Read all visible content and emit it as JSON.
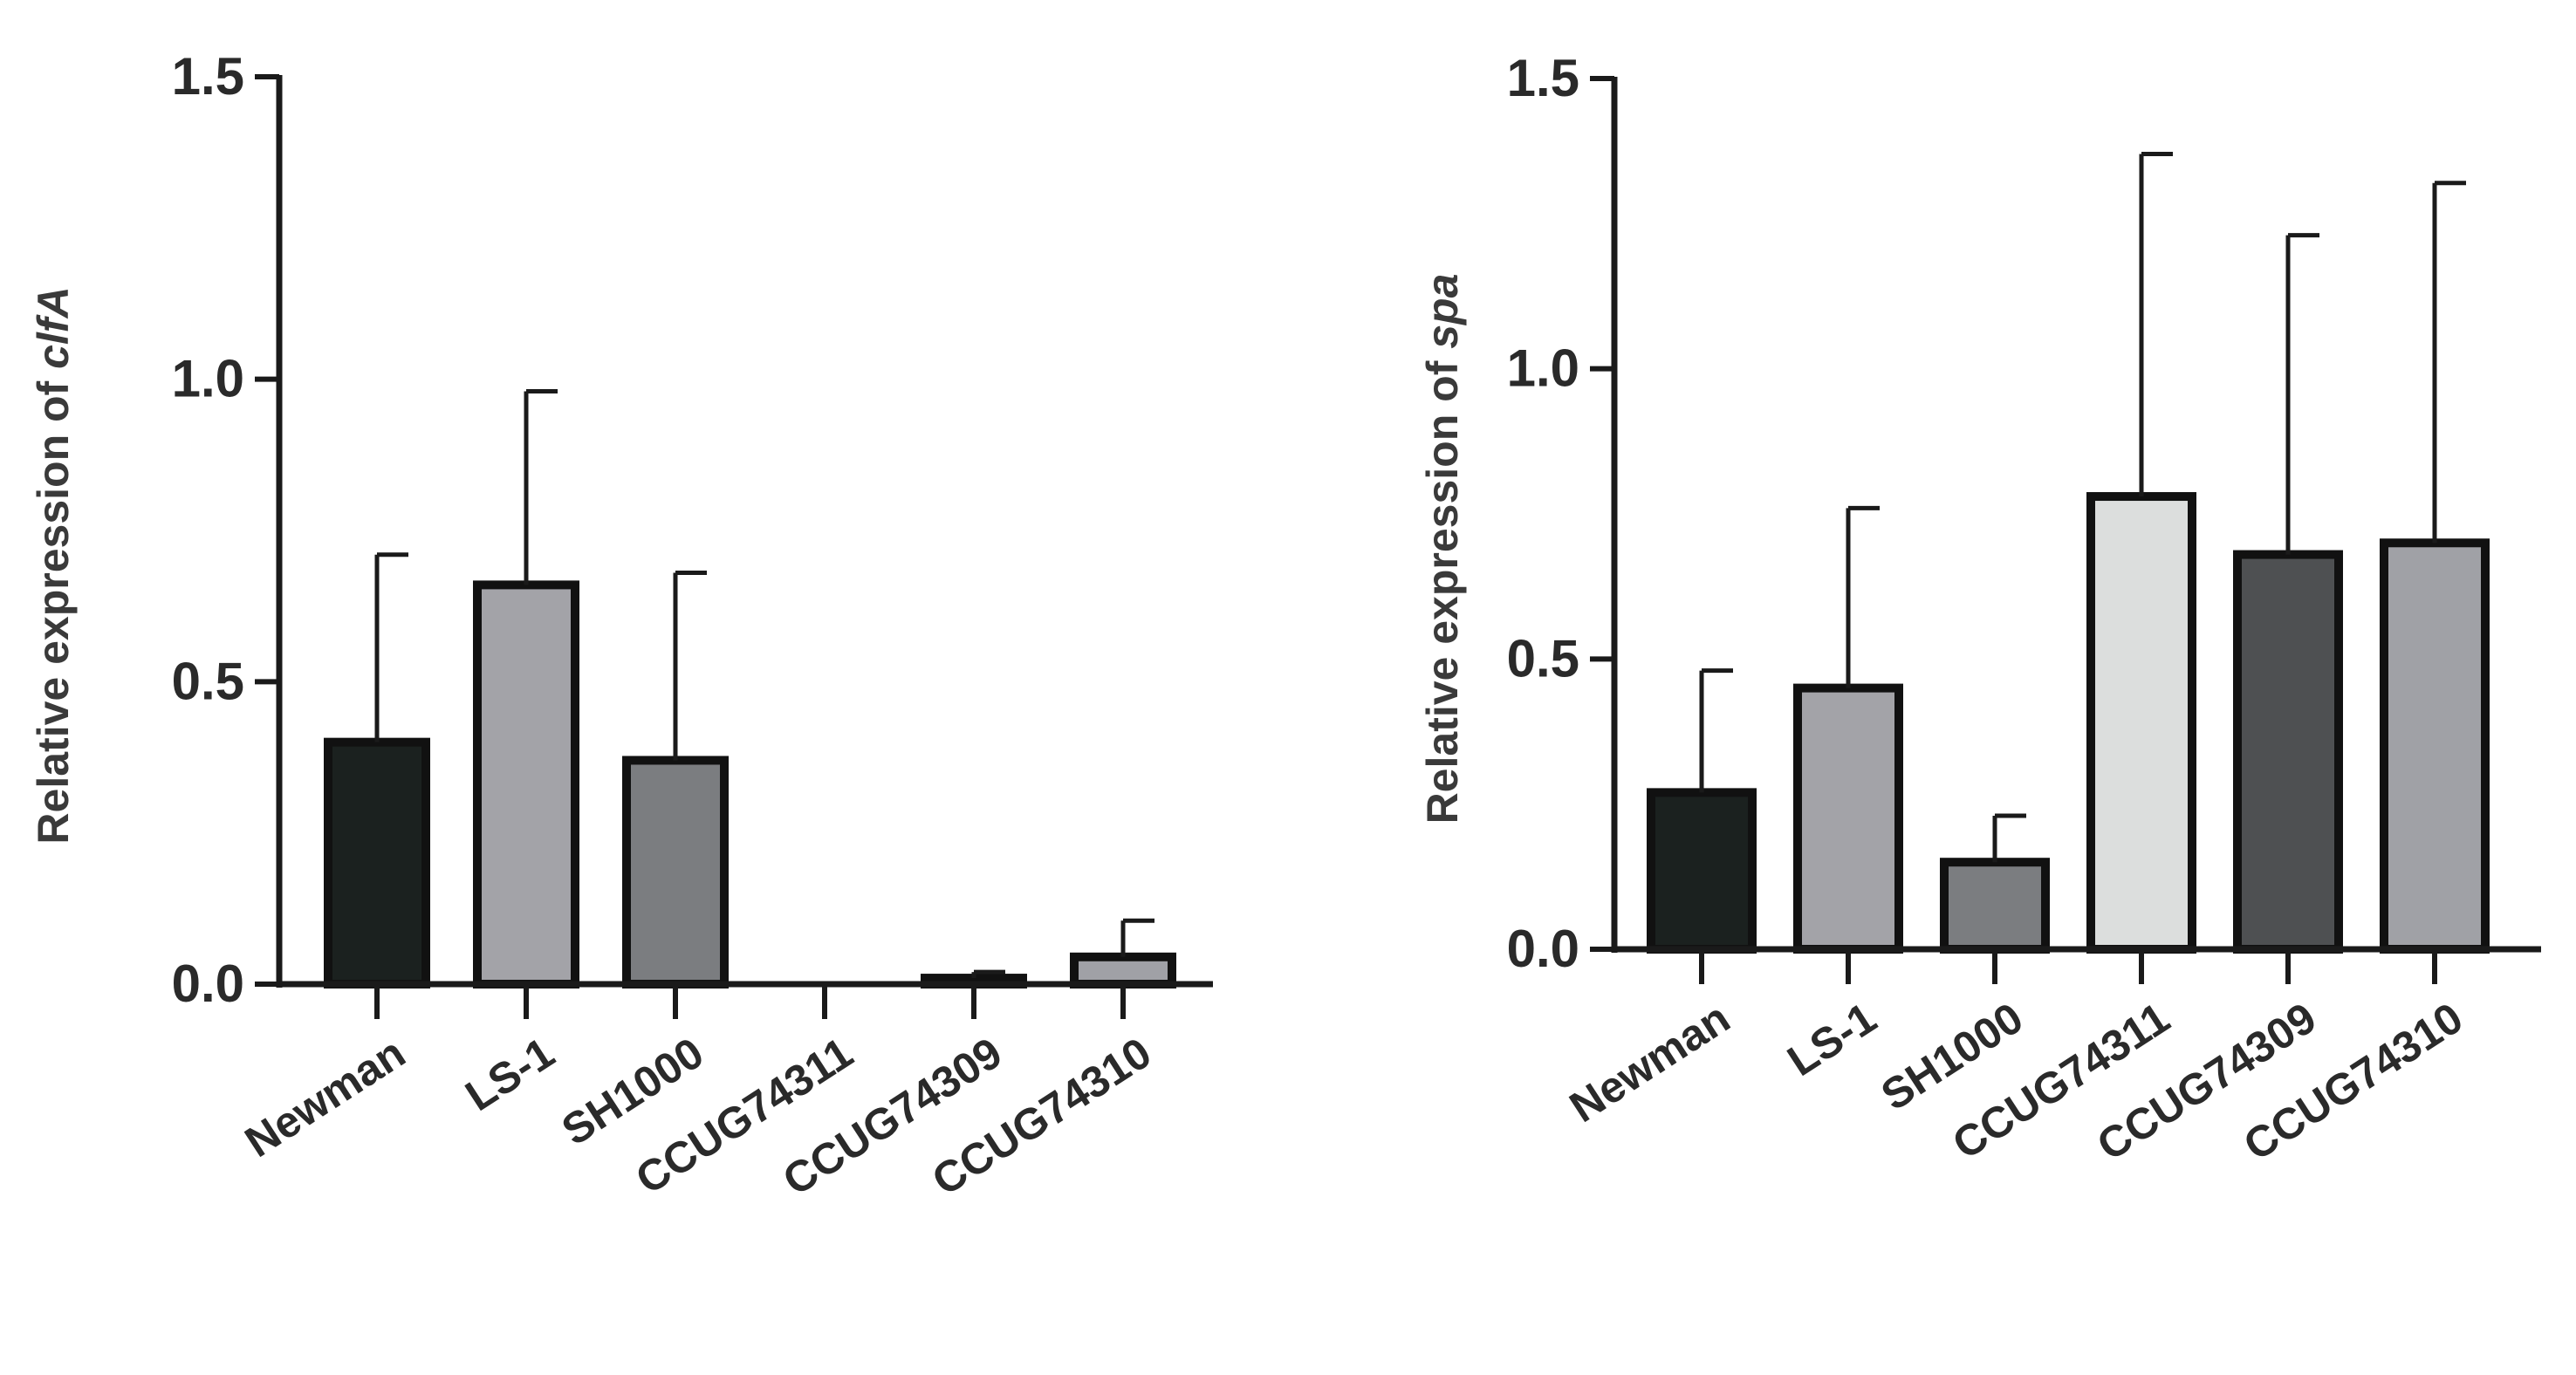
{
  "chart_data": [
    {
      "type": "bar",
      "ylabel_prefix": "Relative expression of ",
      "ylabel_gene": "clfA",
      "ylim": [
        0,
        1.5
      ],
      "yticks": [
        "0.0",
        "0.5",
        "1.0",
        "1.5"
      ],
      "categories": [
        "Newman",
        "LS-1",
        "SH1000",
        "CCUG74311",
        "CCUG74309",
        "CCUG74310"
      ],
      "values": [
        0.4,
        0.66,
        0.37,
        0.0,
        0.01,
        0.045
      ],
      "errors": [
        0.31,
        0.32,
        0.31,
        0.0,
        0.01,
        0.06
      ],
      "colors": [
        "#1b211f",
        "#a3a3a8",
        "#7b7d80",
        "#e2e4e3",
        "#4e5052",
        "#a0a1a6"
      ]
    },
    {
      "type": "bar",
      "ylabel_prefix": "Relative expression of ",
      "ylabel_gene": "spa",
      "ylim": [
        0,
        1.5
      ],
      "yticks": [
        "0.0",
        "0.5",
        "1.0",
        "1.5"
      ],
      "categories": [
        "Newman",
        "LS-1",
        "SH1000",
        "CCUG74311",
        "CCUG74309",
        "CCUG74310"
      ],
      "values": [
        0.27,
        0.45,
        0.15,
        0.78,
        0.68,
        0.7
      ],
      "errors": [
        0.21,
        0.31,
        0.08,
        0.59,
        0.55,
        0.62
      ],
      "colors": [
        "#1b211f",
        "#a3a3a8",
        "#7b7d80",
        "#dcdedd",
        "#4e5052",
        "#a0a1a6"
      ]
    }
  ]
}
